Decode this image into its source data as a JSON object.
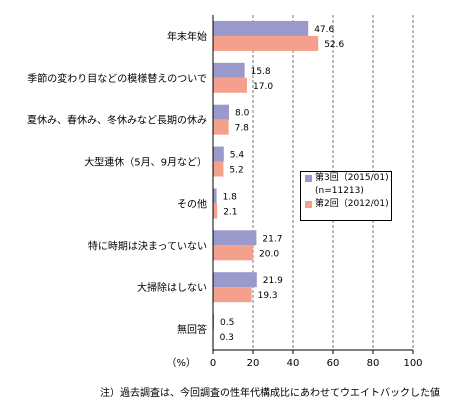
{
  "chart_data": {
    "type": "bar",
    "orientation": "horizontal",
    "categories": [
      "年末年始",
      "季節の変わり目などの模様替えのついで",
      "夏休み、春休み、冬休みなど長期の休み",
      "大型連休（5月、9月など）",
      "その他",
      "特に時期は決まっていない",
      "大掃除はしない",
      "無回答"
    ],
    "series": [
      {
        "name": "第3回（2015/01)",
        "legend_extra": "(n=11213)",
        "color": "#9999cc",
        "values": [
          47.6,
          15.8,
          8.0,
          5.4,
          1.8,
          21.7,
          21.9,
          0.5
        ],
        "labels": [
          "47.6",
          "15.8",
          "8.0",
          "5.4",
          "1.8",
          "21.7",
          "21.9",
          "0.5"
        ]
      },
      {
        "name": "第2回（2012/01)",
        "color": "#f4a08c",
        "values": [
          52.6,
          17.0,
          7.8,
          5.2,
          2.1,
          20.0,
          19.3,
          0.3
        ],
        "labels": [
          "52.6",
          "17.0",
          "7.8",
          "5.2",
          "2.1",
          "20.0",
          "19.3",
          "0.3"
        ]
      }
    ],
    "xlim": [
      0,
      100
    ],
    "xticks": [
      "0",
      "20",
      "40",
      "60",
      "80",
      "100"
    ],
    "xunit": "（%）",
    "grid": "dashed vertical",
    "legend_position": "right-middle",
    "note": "注）過去調査は、今回調査の性年代構成比にあわせてウエイトバックした値"
  }
}
